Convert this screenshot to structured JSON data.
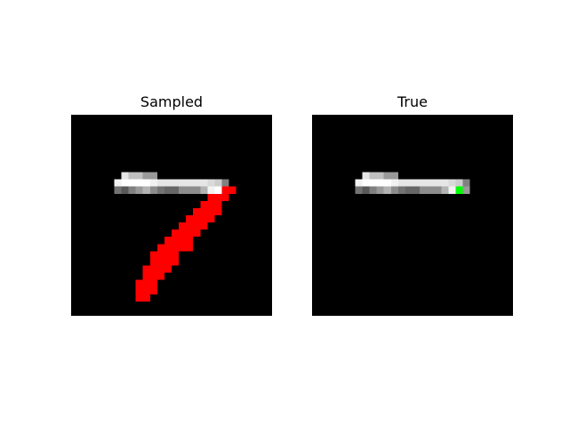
{
  "panels": {
    "left_title": "Sampled",
    "right_title": "True"
  },
  "image": {
    "grid_size": 28,
    "background_color": "#000000",
    "sampled_color": "#ff0000",
    "target_pixel_color": "#00ff00",
    "digit_rows": [
      {
        "row": 8,
        "values": [
          [
            7,
            0.9
          ],
          [
            8,
            0.75
          ],
          [
            9,
            0.75
          ],
          [
            10,
            0.6
          ],
          [
            11,
            0.6
          ]
        ]
      },
      {
        "row": 9,
        "values": [
          [
            6,
            0.95
          ],
          [
            7,
            1
          ],
          [
            8,
            1
          ],
          [
            9,
            1
          ],
          [
            10,
            1
          ],
          [
            11,
            0.95
          ],
          [
            12,
            0.9
          ],
          [
            13,
            0.9
          ],
          [
            14,
            0.9
          ],
          [
            15,
            0.9
          ],
          [
            16,
            0.9
          ],
          [
            17,
            0.9
          ],
          [
            18,
            0.9
          ],
          [
            19,
            0.85
          ],
          [
            20,
            0.8
          ],
          [
            21,
            0.5
          ]
        ]
      },
      {
        "row": 10,
        "values": [
          [
            6,
            0.45
          ],
          [
            7,
            0.35
          ],
          [
            8,
            0.5
          ],
          [
            9,
            0.6
          ],
          [
            10,
            0.7
          ],
          [
            11,
            0.55
          ],
          [
            12,
            0.45
          ],
          [
            13,
            0.4
          ],
          [
            14,
            0.4
          ],
          [
            15,
            0.55
          ],
          [
            16,
            0.55
          ],
          [
            17,
            0.55
          ],
          [
            18,
            0.7
          ],
          [
            19,
            0.95
          ],
          [
            20,
            1
          ],
          [
            21,
            0.6
          ]
        ]
      }
    ],
    "sampled_pixels": [
      [
        10,
        21
      ],
      [
        10,
        22
      ],
      [
        11,
        19
      ],
      [
        11,
        20
      ],
      [
        11,
        21
      ],
      [
        12,
        18
      ],
      [
        12,
        19
      ],
      [
        12,
        20
      ],
      [
        13,
        17
      ],
      [
        13,
        18
      ],
      [
        13,
        19
      ],
      [
        13,
        20
      ],
      [
        14,
        16
      ],
      [
        14,
        17
      ],
      [
        14,
        18
      ],
      [
        14,
        19
      ],
      [
        15,
        15
      ],
      [
        15,
        16
      ],
      [
        15,
        17
      ],
      [
        15,
        18
      ],
      [
        16,
        14
      ],
      [
        16,
        15
      ],
      [
        16,
        16
      ],
      [
        16,
        17
      ],
      [
        17,
        13
      ],
      [
        17,
        14
      ],
      [
        17,
        15
      ],
      [
        17,
        16
      ],
      [
        18,
        12
      ],
      [
        18,
        13
      ],
      [
        18,
        14
      ],
      [
        18,
        15
      ],
      [
        18,
        16
      ],
      [
        19,
        11
      ],
      [
        19,
        12
      ],
      [
        19,
        13
      ],
      [
        19,
        14
      ],
      [
        20,
        11
      ],
      [
        20,
        12
      ],
      [
        20,
        13
      ],
      [
        20,
        14
      ],
      [
        21,
        10
      ],
      [
        21,
        11
      ],
      [
        21,
        12
      ],
      [
        21,
        13
      ],
      [
        22,
        10
      ],
      [
        22,
        11
      ],
      [
        22,
        12
      ],
      [
        23,
        9
      ],
      [
        23,
        10
      ],
      [
        23,
        11
      ],
      [
        24,
        9
      ],
      [
        24,
        10
      ],
      [
        24,
        11
      ],
      [
        25,
        9
      ],
      [
        25,
        10
      ]
    ],
    "target_pixel": [
      10,
      20
    ]
  }
}
